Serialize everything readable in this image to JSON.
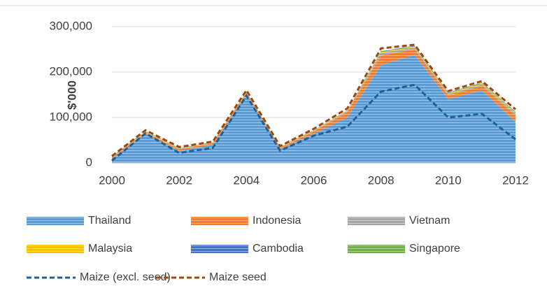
{
  "chart_data": {
    "type": "area",
    "y_label": "$'000",
    "x": [
      2000,
      2001,
      2002,
      2003,
      2004,
      2005,
      2006,
      2007,
      2008,
      2009,
      2010,
      2011,
      2012
    ],
    "xlim": [
      2000,
      2012
    ],
    "xticks": [
      2000,
      2002,
      2004,
      2006,
      2008,
      2010,
      2012
    ],
    "ylim": [
      0,
      300000
    ],
    "yticks": [
      0,
      {
        "value": 100000,
        "label": "100,000"
      },
      {
        "value": 200000,
        "label": "200,000"
      },
      {
        "value": 300000,
        "label": "300,000"
      }
    ],
    "series": [
      {
        "name": "Thailand",
        "color": "#5b9bd5",
        "values": [
          10000,
          63000,
          27000,
          40000,
          150000,
          30000,
          64000,
          100000,
          215000,
          238000,
          140000,
          160000,
          90000
        ]
      },
      {
        "name": "Indonesia",
        "color": "#ed7d31",
        "values": [
          2000,
          4000,
          3000,
          3000,
          4000,
          3000,
          5000,
          12000,
          22000,
          12000,
          8000,
          10000,
          14000
        ]
      },
      {
        "name": "Vietnam",
        "color": "#a5a5a5",
        "values": [
          1000,
          1000,
          1000,
          1000,
          1000,
          1000,
          1000,
          2000,
          5000,
          4000,
          3000,
          3000,
          5000
        ]
      },
      {
        "name": "Malaysia",
        "color": "#ffc000",
        "values": [
          1000,
          1000,
          1000,
          1000,
          1000,
          1000,
          1000,
          1000,
          2000,
          2000,
          2000,
          2000,
          2000
        ]
      },
      {
        "name": "Cambodia",
        "color": "#4472c4",
        "values": [
          500,
          500,
          500,
          500,
          500,
          500,
          500,
          500,
          1000,
          1000,
          1000,
          1000,
          1000
        ]
      },
      {
        "name": "Singapore",
        "color": "#70ad47",
        "values": [
          500,
          500,
          500,
          500,
          500,
          500,
          500,
          500,
          1000,
          1000,
          1000,
          1000,
          1000
        ]
      }
    ],
    "lines": [
      {
        "name": "Maize (excl. seed)",
        "color": "#255e91",
        "values": [
          5000,
          65000,
          22000,
          33000,
          148000,
          27000,
          60000,
          80000,
          157000,
          172000,
          100000,
          108000,
          52000
        ]
      },
      {
        "name": "Maize seed",
        "color": "#9e480e",
        "values": [
          15000,
          72000,
          35000,
          47000,
          160000,
          37000,
          75000,
          120000,
          252000,
          260000,
          158000,
          180000,
          118000
        ]
      }
    ]
  }
}
